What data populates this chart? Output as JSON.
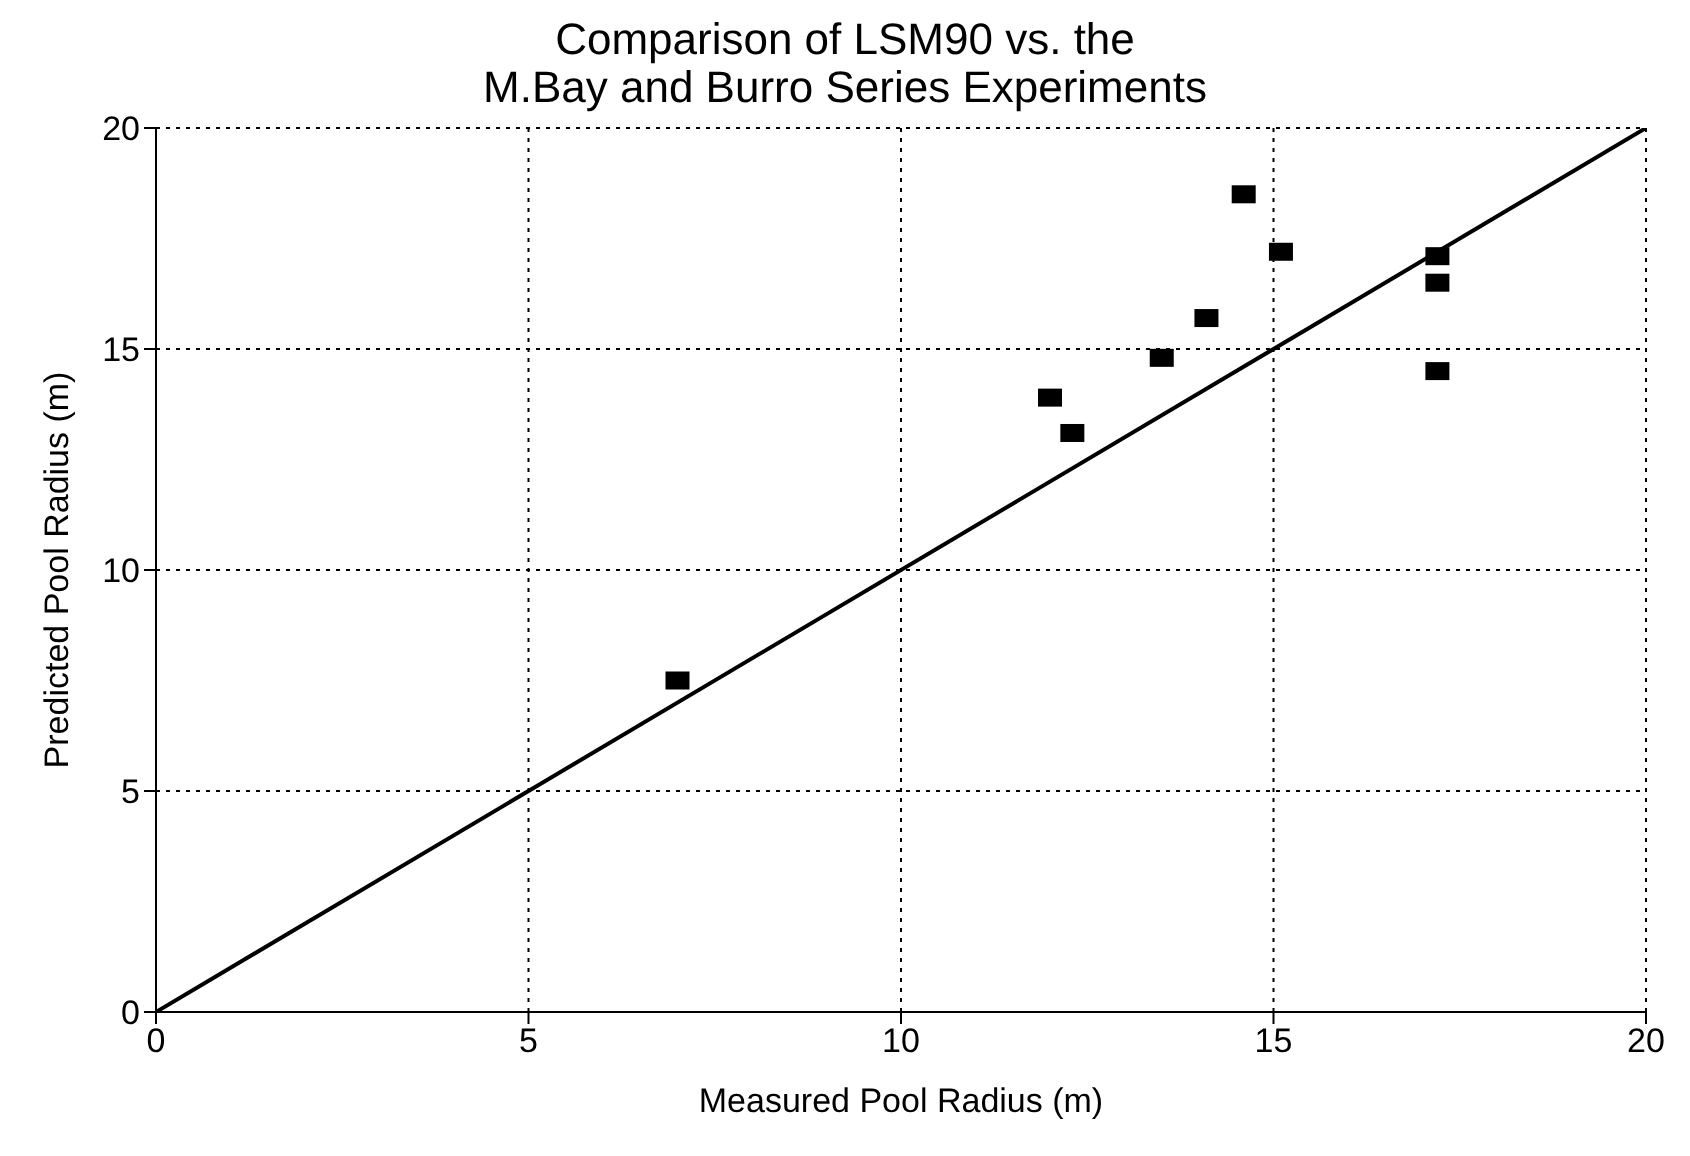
{
  "chart_data": {
    "type": "scatter",
    "title": "Comparison of LSM90 vs. the\nM.Bay and Burro Series Experiments",
    "xlabel": "Measured Pool Radius (m)",
    "ylabel": "Predicted Pool Radius (m)",
    "xlim": [
      0,
      20
    ],
    "ylim": [
      0,
      20
    ],
    "xticks": [
      0,
      5,
      10,
      15,
      20
    ],
    "yticks": [
      0,
      5,
      10,
      15,
      20
    ],
    "grid": true,
    "series": [
      {
        "color": "#000000",
        "marker": "square",
        "x": [
          7.0,
          12.0,
          12.3,
          13.5,
          14.1,
          14.6,
          15.1,
          17.2,
          17.2,
          17.2
        ],
        "values": [
          7.5,
          13.9,
          13.1,
          14.8,
          15.7,
          18.5,
          17.2,
          17.1,
          16.5,
          14.5
        ]
      },
      {
        "type": "line",
        "color": "#000000",
        "marker": "none",
        "line_style": "solid",
        "x": [
          0,
          20
        ],
        "values": [
          0,
          20
        ]
      }
    ]
  }
}
